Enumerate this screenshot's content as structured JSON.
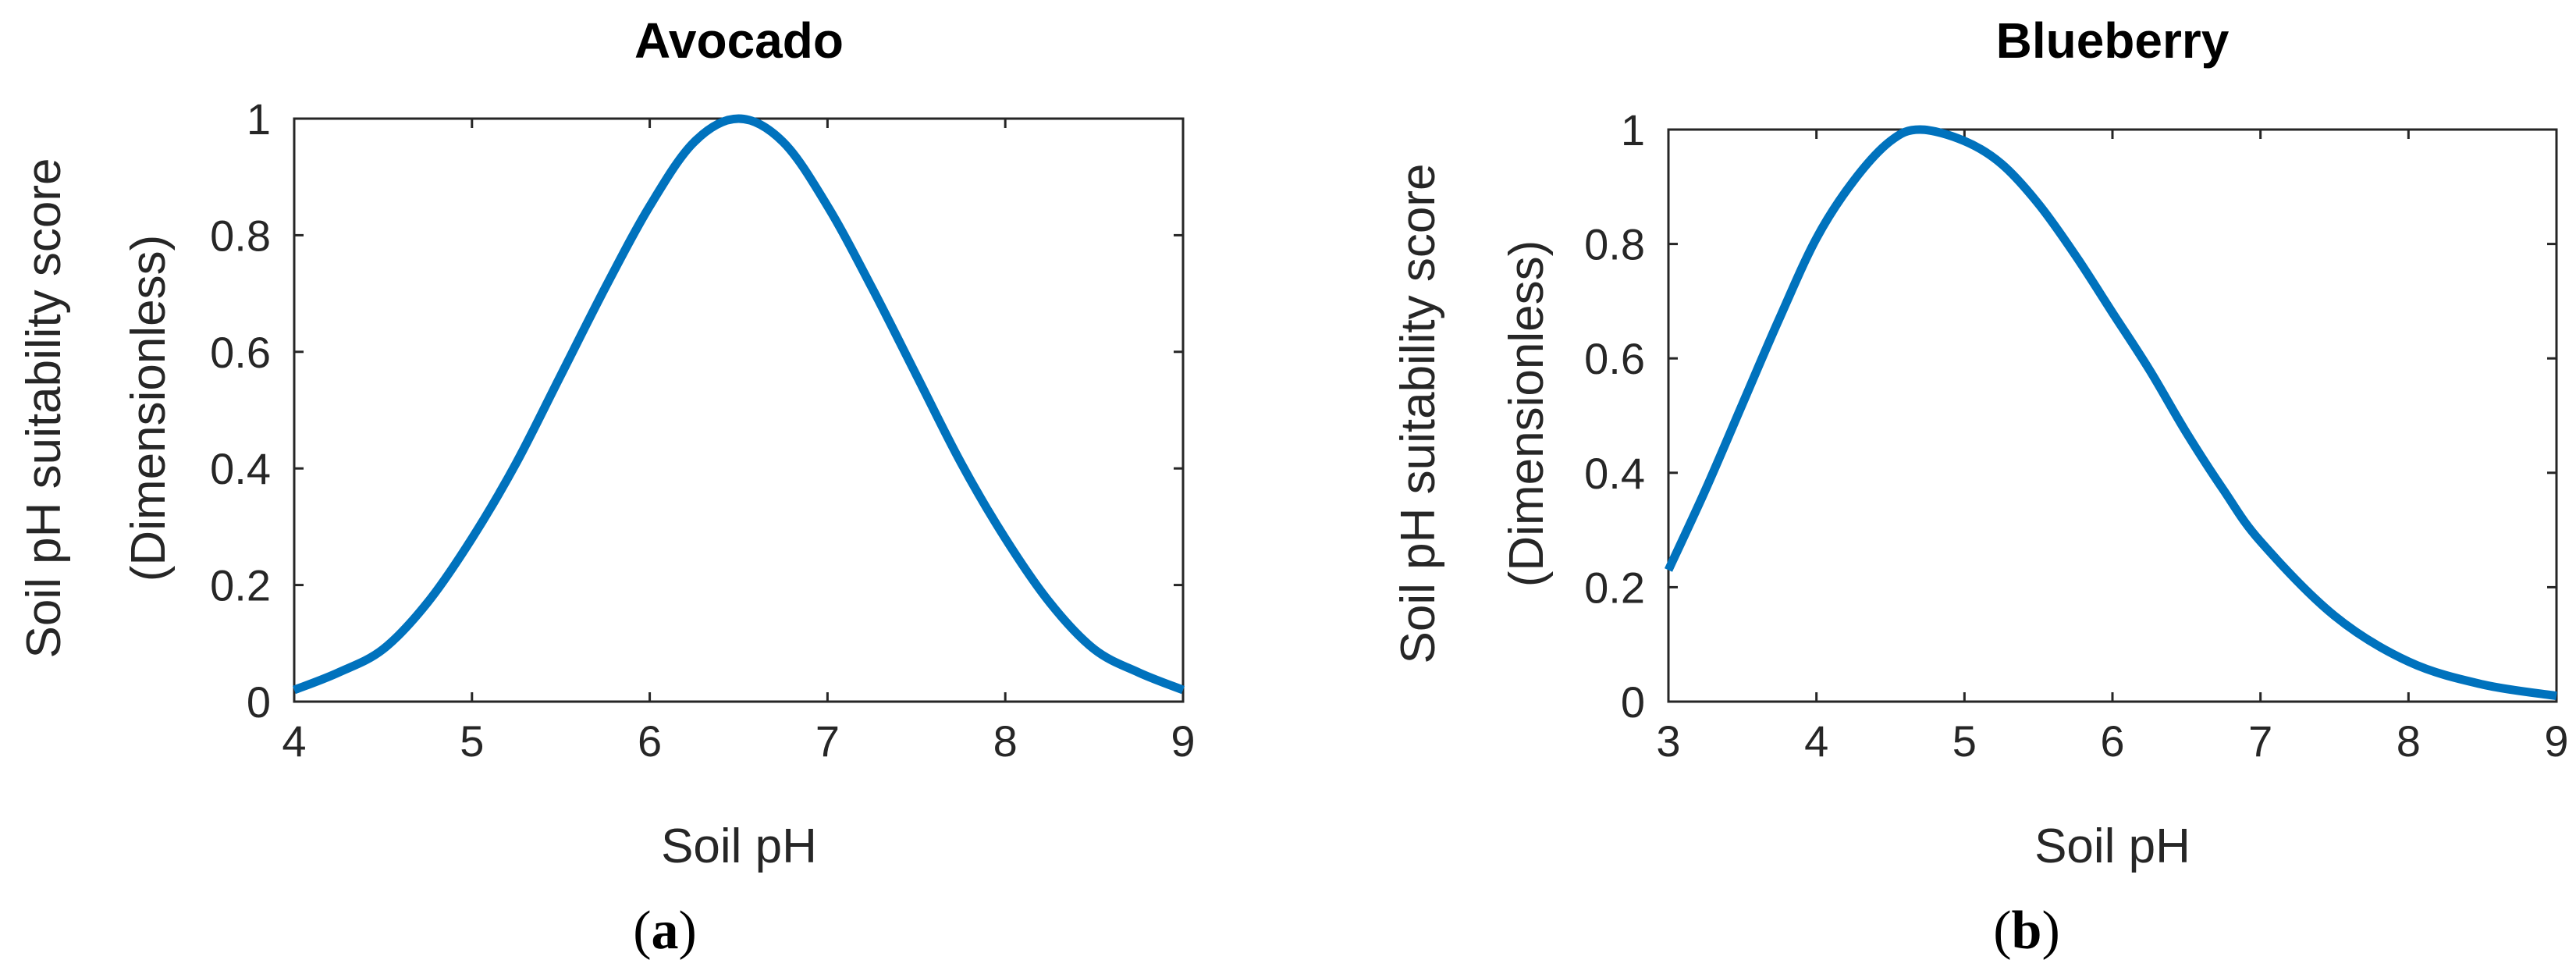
{
  "chart_data": [
    {
      "type": "line",
      "title": "Avocado",
      "xlabel": "Soil pH",
      "ylabel": [
        "Soil pH suitability score",
        "(Dimensionless)"
      ],
      "panel_label": "a",
      "xlim": [
        4,
        9
      ],
      "ylim": [
        0,
        1
      ],
      "xticks": [
        4,
        5,
        6,
        7,
        8,
        9
      ],
      "yticks": [
        0,
        0.2,
        0.4,
        0.6,
        0.8,
        1
      ],
      "ytick_labels": [
        "0",
        "0.2",
        "0.4",
        "0.6",
        "0.8",
        "1"
      ],
      "grid": false,
      "line_color": "#0072BD",
      "series": [
        {
          "x": [
            4.0,
            4.25,
            4.5,
            4.75,
            5.0,
            5.25,
            5.5,
            5.75,
            6.0,
            6.25,
            6.5,
            6.75,
            7.0,
            7.25,
            7.5,
            7.75,
            8.0,
            8.25,
            8.5,
            8.75,
            9.0
          ],
          "y": [
            0.02,
            0.05,
            0.09,
            0.17,
            0.28,
            0.41,
            0.56,
            0.71,
            0.85,
            0.96,
            1.0,
            0.96,
            0.85,
            0.71,
            0.56,
            0.41,
            0.28,
            0.17,
            0.09,
            0.05,
            0.02
          ]
        }
      ]
    },
    {
      "type": "line",
      "title": "Blueberry",
      "xlabel": "Soil pH",
      "ylabel": [
        "Soil pH suitability score",
        "(Dimensionless)"
      ],
      "panel_label": "b",
      "xlim": [
        3,
        9
      ],
      "ylim": [
        0,
        1
      ],
      "xticks": [
        3,
        4,
        5,
        6,
        7,
        8,
        9
      ],
      "yticks": [
        0,
        0.2,
        0.4,
        0.6,
        0.8,
        1
      ],
      "ytick_labels": [
        "0",
        "0.2",
        "0.4",
        "0.6",
        "0.8",
        "1"
      ],
      "grid": false,
      "line_color": "#0072BD",
      "series": [
        {
          "x": [
            3.0,
            3.25,
            3.5,
            3.75,
            4.0,
            4.25,
            4.5,
            4.7,
            5.0,
            5.25,
            5.5,
            5.75,
            6.0,
            6.25,
            6.5,
            6.75,
            7.0,
            7.5,
            8.0,
            8.5,
            9.0
          ],
          "y": [
            0.23,
            0.37,
            0.52,
            0.67,
            0.81,
            0.91,
            0.98,
            1.0,
            0.98,
            0.94,
            0.87,
            0.78,
            0.68,
            0.58,
            0.47,
            0.37,
            0.28,
            0.15,
            0.07,
            0.03,
            0.01
          ]
        }
      ]
    }
  ]
}
